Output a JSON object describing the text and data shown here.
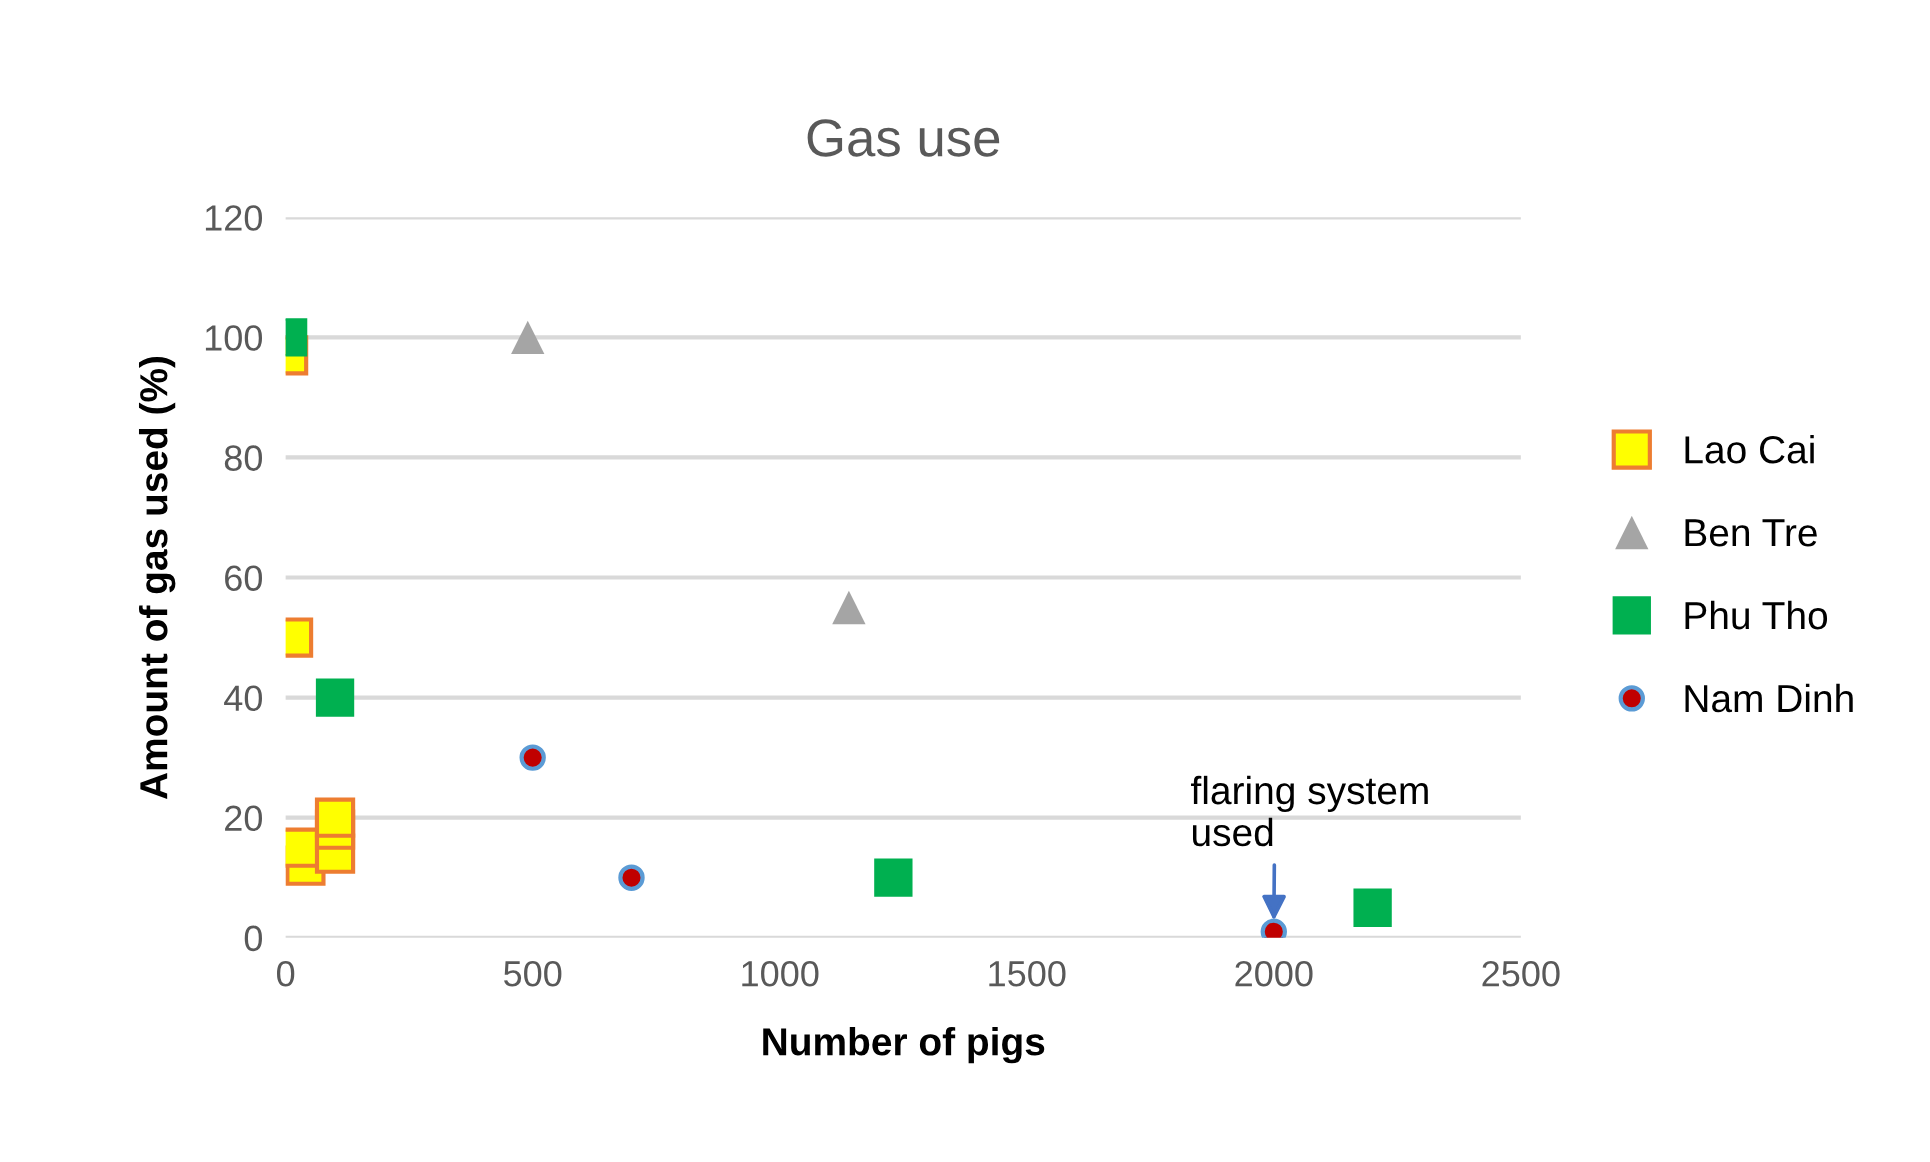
{
  "chart_data": {
    "type": "scatter",
    "title": "Gas use",
    "xlabel": "Number of pigs",
    "ylabel": "Amount of gas used (%)",
    "xlim": [
      0,
      2500
    ],
    "xticks": [
      0,
      500,
      1000,
      1500,
      2000,
      2500
    ],
    "ylim": [
      0,
      120
    ],
    "yticks": [
      0,
      20,
      40,
      60,
      80,
      100,
      120
    ],
    "grid": "y",
    "legend": "right",
    "series": [
      {
        "name": "Lao Cai",
        "color": "#ffff00",
        "marker": "square",
        "x": [
          5,
          15,
          40,
          30,
          100,
          100,
          100
        ],
        "values": [
          97,
          50,
          12,
          15,
          14,
          18,
          20
        ]
      },
      {
        "name": "Ben Tre",
        "color": "#a5a5a5",
        "marker": "triangle",
        "x": [
          490,
          1140
        ],
        "values": [
          100,
          55
        ]
      },
      {
        "name": "Phu Tho",
        "color": "#00b050",
        "marker": "square",
        "x": [
          5,
          100,
          1230,
          2200
        ],
        "values": [
          100,
          40,
          10,
          5
        ]
      },
      {
        "name": "Nam Dinh",
        "color": "#c00000",
        "marker": "circle",
        "x": [
          500,
          700,
          2000
        ],
        "values": [
          30,
          10,
          1
        ]
      }
    ],
    "annotations": [
      {
        "text": "flaring system\nused",
        "x": 2000,
        "y": 1
      }
    ]
  }
}
